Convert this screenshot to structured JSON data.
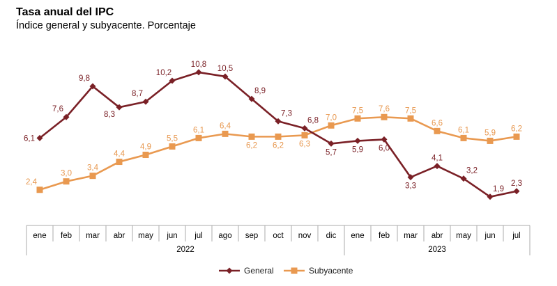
{
  "header": {
    "title": "Tasa anual del IPC",
    "subtitle": "Índice general y subyacente. Porcentaje"
  },
  "colors": {
    "axis_line": "#ABABAB",
    "axis_text": "#000000",
    "legend_text": "#1A1A1A",
    "background": "#FFFFFF"
  },
  "chart_data": {
    "type": "line",
    "title": "Tasa anual del IPC",
    "subtitle": "Índice general y subyacente. Porcentaje",
    "categories": [
      "ene",
      "feb",
      "mar",
      "abr",
      "may",
      "jun",
      "jul",
      "ago",
      "sep",
      "oct",
      "nov",
      "dic",
      "ene",
      "feb",
      "mar",
      "abr",
      "may",
      "jun",
      "jul"
    ],
    "year_groups": [
      {
        "label": "2022",
        "months": 12
      },
      {
        "label": "2023",
        "months": 7
      }
    ],
    "ylim": [
      0,
      12
    ],
    "grid": false,
    "y_axis_visible": false,
    "legend_position": "bottom-center",
    "series": [
      {
        "name": "General",
        "marker": "diamond",
        "color": "#7A2026",
        "label_color": "#7A2026",
        "values": [
          6.1,
          7.6,
          9.8,
          8.3,
          8.7,
          10.2,
          10.8,
          10.5,
          8.9,
          7.3,
          6.8,
          5.7,
          5.9,
          6.0,
          3.3,
          4.1,
          3.2,
          1.9,
          2.3
        ],
        "labels": [
          "6,1",
          "7,6",
          "9,8",
          "8,3",
          "8,7",
          "10,2",
          "10,8",
          "10,5",
          "8,9",
          "7,3",
          "6,8",
          "5,7",
          "5,9",
          "6,0",
          "3,3",
          "4,1",
          "3,2",
          "1,9",
          "2,3"
        ],
        "label_placement": [
          "left",
          "above-left",
          "above-left",
          "below-left",
          "above-left",
          "above-left",
          "above",
          "above",
          "above-right",
          "above-right",
          "above-right",
          "below",
          "below",
          "below",
          "below",
          "above",
          "above-right",
          "above-right",
          "above"
        ]
      },
      {
        "name": "Subyacente",
        "marker": "square",
        "color": "#E99950",
        "label_color": "#E7974E",
        "values": [
          2.4,
          3.0,
          3.4,
          4.4,
          4.9,
          5.5,
          6.1,
          6.4,
          6.2,
          6.2,
          6.3,
          7.0,
          7.5,
          7.6,
          7.5,
          6.6,
          6.1,
          5.9,
          6.2
        ],
        "labels": [
          "2,4",
          "3,0",
          "3,4",
          "4,4",
          "4,9",
          "5,5",
          "6,1",
          "6,4",
          "6,2",
          "6,2",
          "6,3",
          "7,0",
          "7,5",
          "7,6",
          "7,5",
          "6,6",
          "6,1",
          "5,9",
          "6,2"
        ],
        "label_placement": [
          "above-left",
          "above",
          "above",
          "above",
          "above",
          "above",
          "above",
          "above",
          "below",
          "below",
          "below",
          "above",
          "above",
          "above",
          "above",
          "above",
          "above",
          "above",
          "above"
        ]
      }
    ],
    "legend": [
      "General",
      "Subyacente"
    ]
  }
}
